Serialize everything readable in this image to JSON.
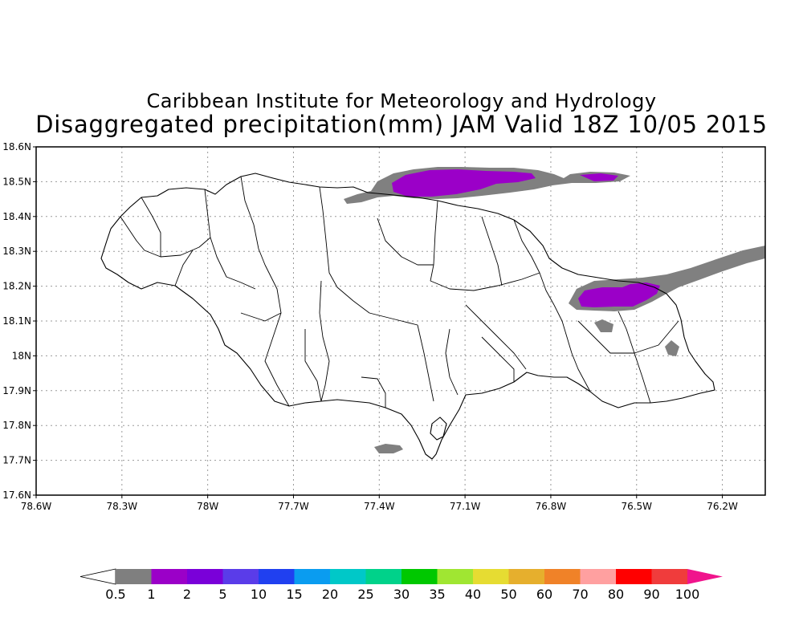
{
  "title": {
    "line1": "Caribbean Institute for Meteorology and Hydrology",
    "line2": "Disaggregated precipitation(mm) JAM Valid 18Z 10/05 2015"
  },
  "map": {
    "lon_range": [
      -78.6,
      -76.05
    ],
    "lat_range": [
      17.6,
      18.6
    ],
    "y_ticks": [
      {
        "value": 18.6,
        "label": "18.6N"
      },
      {
        "value": 18.5,
        "label": "18.5N"
      },
      {
        "value": 18.4,
        "label": "18.4N"
      },
      {
        "value": 18.3,
        "label": "18.3N"
      },
      {
        "value": 18.2,
        "label": "18.2N"
      },
      {
        "value": 18.1,
        "label": "18.1N"
      },
      {
        "value": 18.0,
        "label": "18N"
      },
      {
        "value": 17.9,
        "label": "17.9N"
      },
      {
        "value": 17.8,
        "label": "17.8N"
      },
      {
        "value": 17.7,
        "label": "17.7N"
      },
      {
        "value": 17.6,
        "label": "17.6N"
      }
    ],
    "x_ticks": [
      {
        "value": -78.6,
        "label": "78.6W"
      },
      {
        "value": -78.3,
        "label": "78.3W"
      },
      {
        "value": -78.0,
        "label": "78W"
      },
      {
        "value": -77.7,
        "label": "77.7W"
      },
      {
        "value": -77.4,
        "label": "77.4W"
      },
      {
        "value": -77.1,
        "label": "77.1W"
      },
      {
        "value": -76.8,
        "label": "76.8W"
      },
      {
        "value": -76.5,
        "label": "76.5W"
      },
      {
        "value": -76.2,
        "label": "76.2W"
      }
    ],
    "grid": "dotted",
    "land_color": "#ffffff",
    "border_color": "#000000"
  },
  "colorbar": {
    "levels": [
      "0.5",
      "1",
      "2",
      "5",
      "10",
      "15",
      "20",
      "25",
      "30",
      "35",
      "40",
      "50",
      "60",
      "70",
      "80",
      "90",
      "100"
    ],
    "colors": [
      "#ffffff",
      "#7f7f7f",
      "#9b00c8",
      "#7a00d9",
      "#5a3ce9",
      "#2040f0",
      "#0a9cf0",
      "#00c8c8",
      "#00d28a",
      "#00c800",
      "#a0e632",
      "#e6dc32",
      "#e6af2d",
      "#f08228",
      "#ffa0a0",
      "#ff0000",
      "#f03c3c",
      "#f0148c"
    ]
  },
  "colors": {
    "light_precip": "#808080",
    "moderate_precip": "#9b00c8"
  }
}
